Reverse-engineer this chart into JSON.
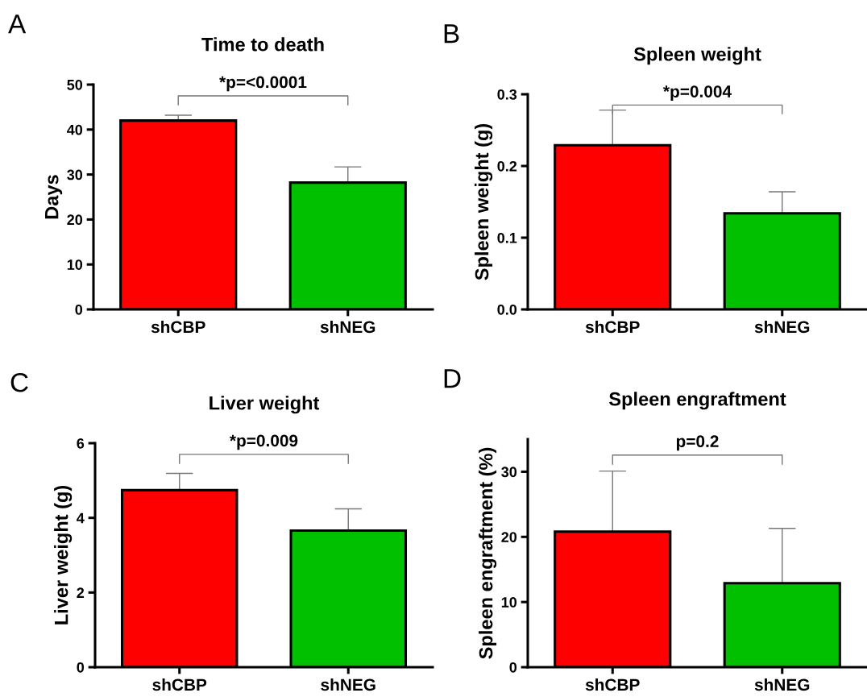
{
  "chart_data": [
    {
      "type": "bar",
      "title": "Time to death",
      "ylabel": "Days",
      "categories": [
        "shCBP",
        "shNEG"
      ],
      "values": [
        42.0,
        28.2
      ],
      "colors": [
        "#ff0000",
        "#00c000"
      ],
      "errors": [
        1.2,
        3.5
      ],
      "ylim": [
        0,
        50
      ],
      "yticks": [
        0,
        10,
        20,
        30,
        40,
        50
      ],
      "grid": false,
      "legend": false,
      "annotations": [
        "A",
        "*p=<0.0001"
      ]
    },
    {
      "type": "bar",
      "title": "Spleen weight",
      "ylabel": "Spleen weight (g)",
      "categories": [
        "shCBP",
        "shNEG"
      ],
      "values": [
        0.229,
        0.134
      ],
      "colors": [
        "#ff0000",
        "#00c000"
      ],
      "errors": [
        0.049,
        0.03
      ],
      "ylim": [
        0,
        0.3
      ],
      "yticks": [
        {
          "value": 0,
          "label": "0.0"
        },
        0.1,
        0.2,
        0.3
      ],
      "grid": false,
      "legend": false,
      "annotations": [
        "B",
        "*p=0.004"
      ]
    },
    {
      "type": "bar",
      "title": "Liver weight",
      "ylabel": "Liver weight (g)",
      "categories": [
        "shCBP",
        "shNEG"
      ],
      "values": [
        4.74,
        3.66
      ],
      "colors": [
        "#ff0000",
        "#00c000"
      ],
      "errors": [
        0.45,
        0.58
      ],
      "ylim": [
        0,
        6
      ],
      "yticks": [
        0,
        2,
        4,
        6
      ],
      "grid": false,
      "legend": false,
      "annotations": [
        "C",
        "*p=0.009"
      ]
    },
    {
      "type": "bar",
      "title": "Spleen engraftment",
      "ylabel": "Spleen engraftment (%)",
      "categories": [
        "shCBP",
        "shNEG"
      ],
      "values": [
        20.8,
        12.9
      ],
      "colors": [
        "#ff0000",
        "#00c000"
      ],
      "errors": [
        9.3,
        8.4
      ],
      "ylim": [
        0,
        35
      ],
      "yticks": [
        0,
        10,
        20,
        30
      ],
      "grid": false,
      "legend": false,
      "annotations": [
        "D",
        "p=0.2"
      ]
    }
  ]
}
